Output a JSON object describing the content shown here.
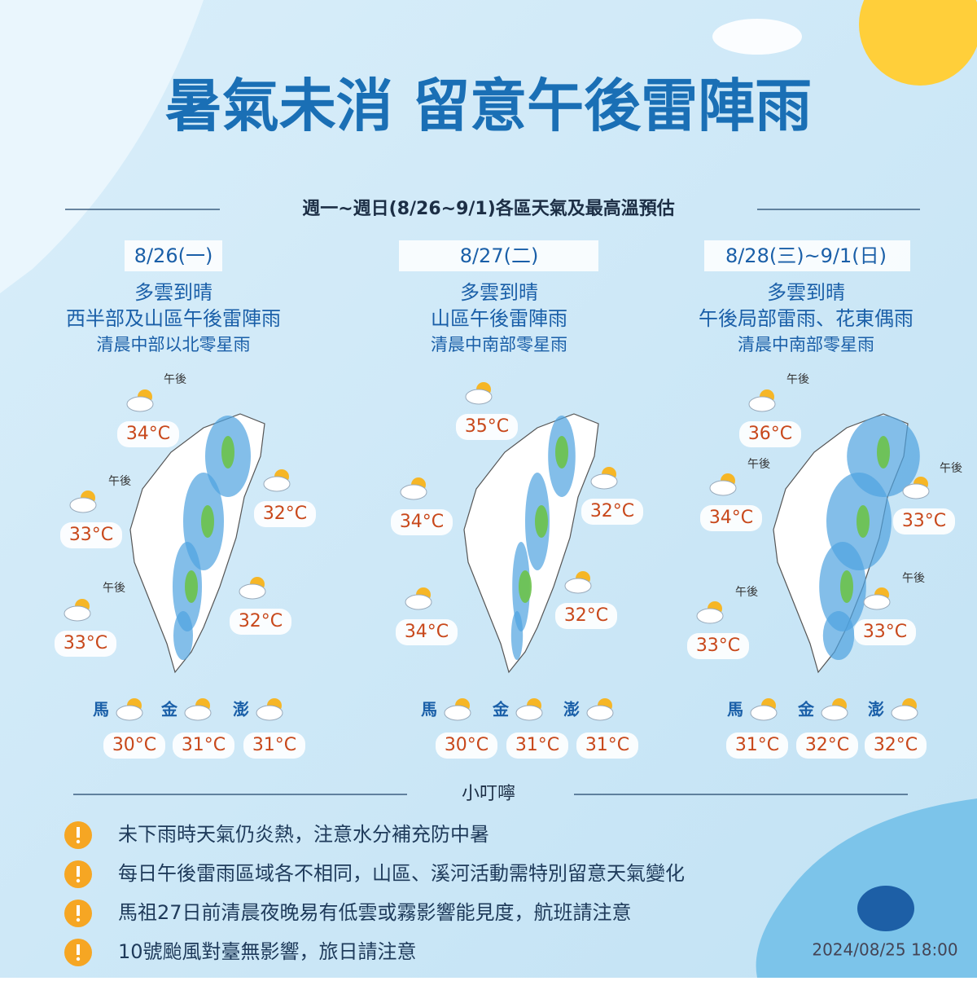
{
  "title": "暑氣未消  留意午後雷陣雨",
  "subtitle": "週一~週日(8/26~9/1)各區天氣及最高溫預估",
  "panels": [
    {
      "date": "8/26(一)",
      "lines": [
        "多雲到晴",
        "西半部及山區午後雷陣雨",
        "清晨中部以北零星雨"
      ],
      "temps": [
        "34°C",
        "33°C",
        "32°C",
        "33°C",
        "32°C"
      ],
      "notes": [
        "午後",
        "午後",
        "午後"
      ],
      "islands": [
        {
          "name": "馬",
          "temp": "30°C"
        },
        {
          "name": "金",
          "temp": "31°C"
        },
        {
          "name": "澎",
          "temp": "31°C"
        }
      ]
    },
    {
      "date": "8/27(二)",
      "lines": [
        "多雲到晴",
        "山區午後雷陣雨",
        "清晨中南部零星雨"
      ],
      "temps": [
        "35°C",
        "34°C",
        "32°C",
        "34°C",
        "32°C"
      ],
      "notes": [],
      "islands": [
        {
          "name": "馬",
          "temp": "30°C"
        },
        {
          "name": "金",
          "temp": "31°C"
        },
        {
          "name": "澎",
          "temp": "31°C"
        }
      ]
    },
    {
      "date": "8/28(三)~9/1(日)",
      "lines": [
        "多雲到晴",
        "午後局部雷雨、花東偶雨",
        "清晨中南部零星雨"
      ],
      "temps": [
        "36°C",
        "34°C",
        "33°C",
        "33°C",
        "33°C"
      ],
      "notes": [
        "午後",
        "午後",
        "午後",
        "午後",
        "午後"
      ],
      "islands": [
        {
          "name": "馬",
          "temp": "31°C"
        },
        {
          "name": "金",
          "temp": "32°C"
        },
        {
          "name": "澎",
          "temp": "32°C"
        }
      ]
    }
  ],
  "tips": {
    "title": "小叮嚀",
    "items": [
      "未下雨時天氣仍炎熱，注意水分補充防中暑",
      "每日午後雷雨區域各不相同，山區、溪河活動需特別留意天氣變化",
      "馬祖27日前清晨夜晚易有低雲或霧影響能見度，航班請注意",
      "10號颱風對臺無影響，旅日請注意"
    ]
  },
  "timestamp": "2024/08/25 18:00"
}
